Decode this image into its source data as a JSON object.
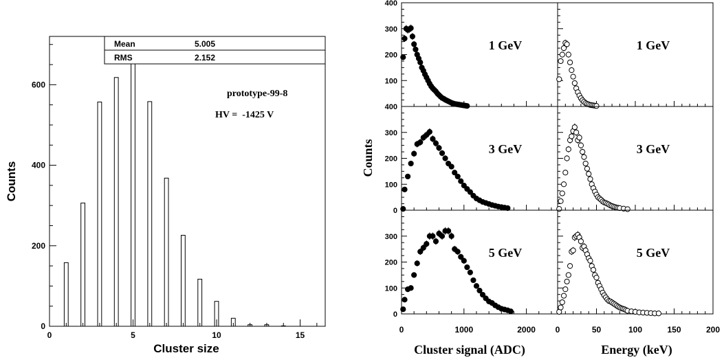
{
  "chart_data": [
    {
      "type": "bar",
      "xlabel": "Cluster size",
      "ylabel": "Counts",
      "xlim": [
        0,
        16.5
      ],
      "ylim": [
        0,
        720
      ],
      "xticks": [
        0,
        5,
        10,
        15
      ],
      "yticks": [
        0,
        200,
        400,
        600
      ],
      "x": [
        1,
        2,
        3,
        4,
        5,
        6,
        7,
        8,
        9,
        10,
        11,
        12,
        13,
        14,
        15
      ],
      "values": [
        158,
        306,
        557,
        618,
        655,
        558,
        368,
        226,
        117,
        62,
        20,
        4,
        4,
        1,
        0
      ],
      "stats": [
        {
          "label": "Mean",
          "value": "5.005"
        },
        {
          "label": "RMS",
          "value": "2.152"
        }
      ],
      "annotations": [
        "prototype-99-8",
        "HV =  -1425 V"
      ],
      "grid": false
    },
    {
      "type": "scatter",
      "panels_layout": "3 rows x 2 columns",
      "ylabel": "Counts",
      "columns": [
        {
          "xlabel": "Cluster signal (ADC)",
          "xlim": [
            0,
            2500
          ],
          "xticks": [
            0,
            1000,
            2000
          ],
          "marker": "filled-circle"
        },
        {
          "xlabel": "Energy (keV)",
          "xlim": [
            0,
            200
          ],
          "xticks": [
            0,
            50,
            100,
            150,
            200
          ],
          "marker": "open-circle"
        }
      ],
      "rows": [
        {
          "label": "1 GeV",
          "yticks_text": [
            "400",
            "300",
            "200",
            "100"
          ],
          "ylim": [
            0,
            400
          ]
        },
        {
          "label": "3 GeV",
          "yticks_text": [
            "400",
            "300",
            "200",
            "100",
            "0"
          ],
          "ylim": [
            0,
            400
          ]
        },
        {
          "label": "5 GeV",
          "yticks_text": [
            "300",
            "200",
            "100",
            "0"
          ],
          "ylim": [
            0,
            400
          ]
        }
      ],
      "series": [
        {
          "row": 0,
          "col": 0,
          "x": [
            25,
            50,
            75,
            100,
            125,
            150,
            175,
            200,
            225,
            250,
            275,
            300,
            325,
            350,
            375,
            400,
            425,
            450,
            475,
            500,
            525,
            550,
            575,
            600,
            625,
            650,
            675,
            700,
            725,
            750,
            775,
            800,
            825,
            850,
            875,
            900,
            925,
            950,
            975,
            1000,
            1025,
            1050
          ],
          "values": [
            190,
            262,
            300,
            295,
            298,
            302,
            270,
            240,
            220,
            200,
            185,
            170,
            150,
            138,
            124,
            112,
            100,
            88,
            78,
            70,
            64,
            58,
            50,
            44,
            38,
            33,
            30,
            26,
            23,
            20,
            17,
            14,
            12,
            10,
            9,
            8,
            7,
            6,
            5,
            4,
            3,
            2
          ]
        },
        {
          "row": 0,
          "col": 1,
          "x": [
            2,
            4,
            6,
            8,
            10,
            12,
            14,
            16,
            18,
            20,
            22,
            24,
            26,
            28,
            30,
            32,
            34,
            36,
            38,
            40,
            42,
            44,
            46,
            48,
            50
          ],
          "values": [
            105,
            175,
            200,
            225,
            245,
            240,
            200,
            170,
            140,
            115,
            90,
            70,
            55,
            42,
            32,
            24,
            18,
            13,
            10,
            8,
            6,
            5,
            4,
            3,
            2
          ]
        },
        {
          "row": 1,
          "col": 0,
          "x": [
            25,
            50,
            100,
            150,
            200,
            250,
            300,
            350,
            400,
            450,
            500,
            550,
            600,
            650,
            700,
            750,
            800,
            850,
            900,
            950,
            1000,
            1050,
            1100,
            1150,
            1200,
            1250,
            1300,
            1350,
            1400,
            1450,
            1500,
            1550,
            1600,
            1650,
            1700
          ],
          "values": [
            5,
            80,
            130,
            180,
            218,
            255,
            262,
            280,
            290,
            302,
            275,
            258,
            240,
            220,
            200,
            180,
            168,
            145,
            130,
            112,
            95,
            82,
            70,
            56,
            45,
            38,
            32,
            28,
            24,
            20,
            17,
            14,
            12,
            10,
            8
          ]
        },
        {
          "row": 1,
          "col": 1,
          "x": [
            2,
            4,
            6,
            8,
            10,
            12,
            14,
            16,
            18,
            20,
            22,
            24,
            26,
            28,
            30,
            32,
            34,
            36,
            38,
            40,
            42,
            44,
            46,
            48,
            50,
            52,
            54,
            56,
            58,
            60,
            62,
            64,
            66,
            68,
            70,
            72,
            74,
            76,
            78,
            80,
            85,
            90
          ],
          "values": [
            5,
            35,
            65,
            100,
            145,
            200,
            235,
            270,
            285,
            305,
            320,
            300,
            270,
            280,
            250,
            225,
            205,
            180,
            160,
            140,
            120,
            100,
            85,
            72,
            60,
            50,
            45,
            40,
            34,
            30,
            28,
            25,
            22,
            18,
            16,
            14,
            12,
            10,
            9,
            8,
            6,
            4
          ]
        },
        {
          "row": 2,
          "col": 0,
          "x": [
            25,
            50,
            100,
            150,
            200,
            250,
            300,
            350,
            400,
            450,
            500,
            550,
            600,
            650,
            700,
            750,
            800,
            850,
            900,
            950,
            1000,
            1050,
            1100,
            1150,
            1200,
            1250,
            1300,
            1350,
            1400,
            1450,
            1500,
            1550,
            1600,
            1650,
            1700,
            1750
          ],
          "values": [
            18,
            55,
            95,
            100,
            150,
            195,
            240,
            255,
            270,
            300,
            300,
            280,
            310,
            300,
            320,
            320,
            300,
            250,
            240,
            220,
            205,
            180,
            160,
            130,
            108,
            90,
            74,
            60,
            48,
            42,
            33,
            26,
            20,
            17,
            14,
            10
          ]
        },
        {
          "row": 2,
          "col": 1,
          "x": [
            2,
            4,
            6,
            8,
            10,
            12,
            14,
            16,
            18,
            20,
            22,
            24,
            26,
            28,
            30,
            32,
            34,
            36,
            38,
            40,
            42,
            44,
            46,
            48,
            50,
            52,
            54,
            56,
            58,
            60,
            62,
            64,
            66,
            68,
            70,
            72,
            74,
            76,
            78,
            80,
            82,
            84,
            86,
            88,
            90,
            95,
            100,
            105,
            110,
            115,
            120,
            125,
            130
          ],
          "values": [
            8,
            25,
            45,
            70,
            95,
            125,
            150,
            185,
            240,
            245,
            295,
            300,
            305,
            295,
            280,
            255,
            260,
            245,
            230,
            215,
            205,
            185,
            170,
            150,
            140,
            120,
            108,
            95,
            82,
            72,
            64,
            56,
            50,
            48,
            44,
            40,
            36,
            32,
            28,
            25,
            22,
            20,
            18,
            15,
            12,
            10,
            8,
            6,
            5,
            4,
            3,
            2,
            2
          ]
        }
      ]
    }
  ]
}
